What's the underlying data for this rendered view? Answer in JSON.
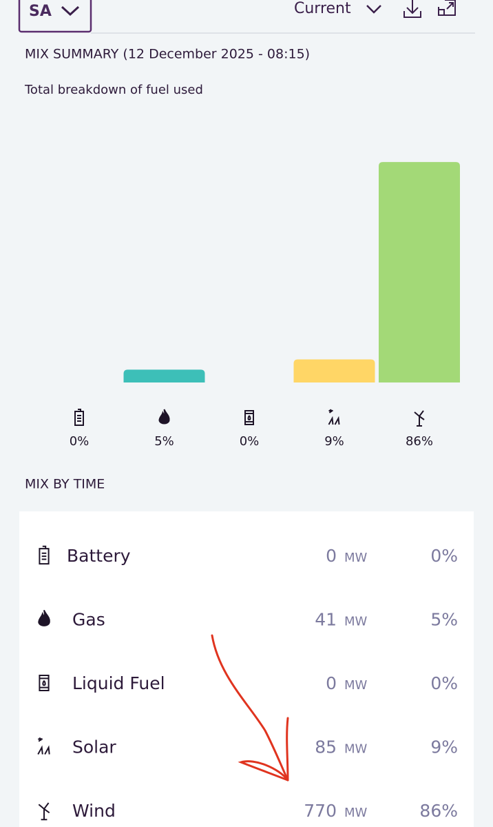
{
  "header": {
    "region": "SA",
    "period": "Current"
  },
  "chart_data": {
    "type": "bar",
    "title": "MIX SUMMARY (12 December 2025 - 08:15)",
    "subtitle": "Total breakdown of fuel used",
    "categories": [
      null,
      null,
      null,
      null,
      null
    ],
    "values": [
      0,
      5,
      0,
      9,
      86
    ],
    "value_labels": [
      "0%",
      "5%",
      "0%",
      "9%",
      "86%"
    ],
    "colors": [
      "#8a6fb0",
      "#3dbfb8",
      "#7a7a7a",
      "#ffd666",
      "#a3d977"
    ],
    "ylim": [
      0,
      100
    ]
  },
  "section_title": "MIX BY TIME",
  "table": {
    "rows": [
      [
        "Battery",
        "0",
        "MW",
        "0%"
      ],
      [
        "Gas",
        "41",
        "MW",
        "5%"
      ],
      [
        "Liquid Fuel",
        "0",
        "MW",
        "0%"
      ],
      [
        "Solar",
        "85",
        "MW",
        "9%"
      ],
      [
        "Wind",
        "770",
        "MW",
        "86%"
      ]
    ]
  }
}
